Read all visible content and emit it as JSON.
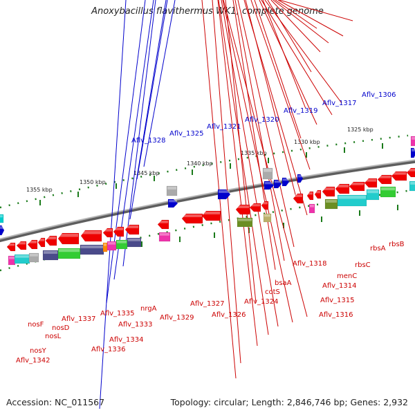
{
  "title": "Anoxybacillus flavithermus WK1, complete genome",
  "footer": {
    "accession": "Accession: NC_011567",
    "summary": "Topology: circular; Length: 2,846,746 bp; Genes: 2,932"
  },
  "colors": {
    "forward_gene": "#0000cc",
    "reverse_gene": "#ee0000",
    "backbone": "#888888",
    "tick": "#1a7a1a",
    "forward_label": "#0000cc",
    "reverse_label": "#cc0000"
  },
  "scale_labels": [
    "1355 kbp",
    "1350 kbp",
    "1345 kbp",
    "1340 kbp",
    "1335 kbp",
    "1330 kbp",
    "1325 kbp"
  ],
  "forward_labels": [
    "Aflv_1306",
    "Aflv_1317",
    "Aflv_1319",
    "Aflv_1320",
    "Aflv_1321",
    "Aflv_1325",
    "Aflv_1328"
  ],
  "reverse_labels": [
    "rbsB",
    "rbsA",
    "rbsC",
    "menC",
    "Aflv_1314",
    "Aflv_1315",
    "Aflv_1316",
    "Aflv_1318",
    "bsaA",
    "cotS",
    "Aflv_1324",
    "Aflv_1326",
    "Aflv_1327",
    "Aflv_1329",
    "nrgA",
    "Aflv_1333",
    "Aflv_1334",
    "Aflv_1335",
    "Aflv_1336",
    "Aflv_1337",
    "nosD",
    "nosL",
    "nosF",
    "nosY",
    "Aflv_1342"
  ]
}
